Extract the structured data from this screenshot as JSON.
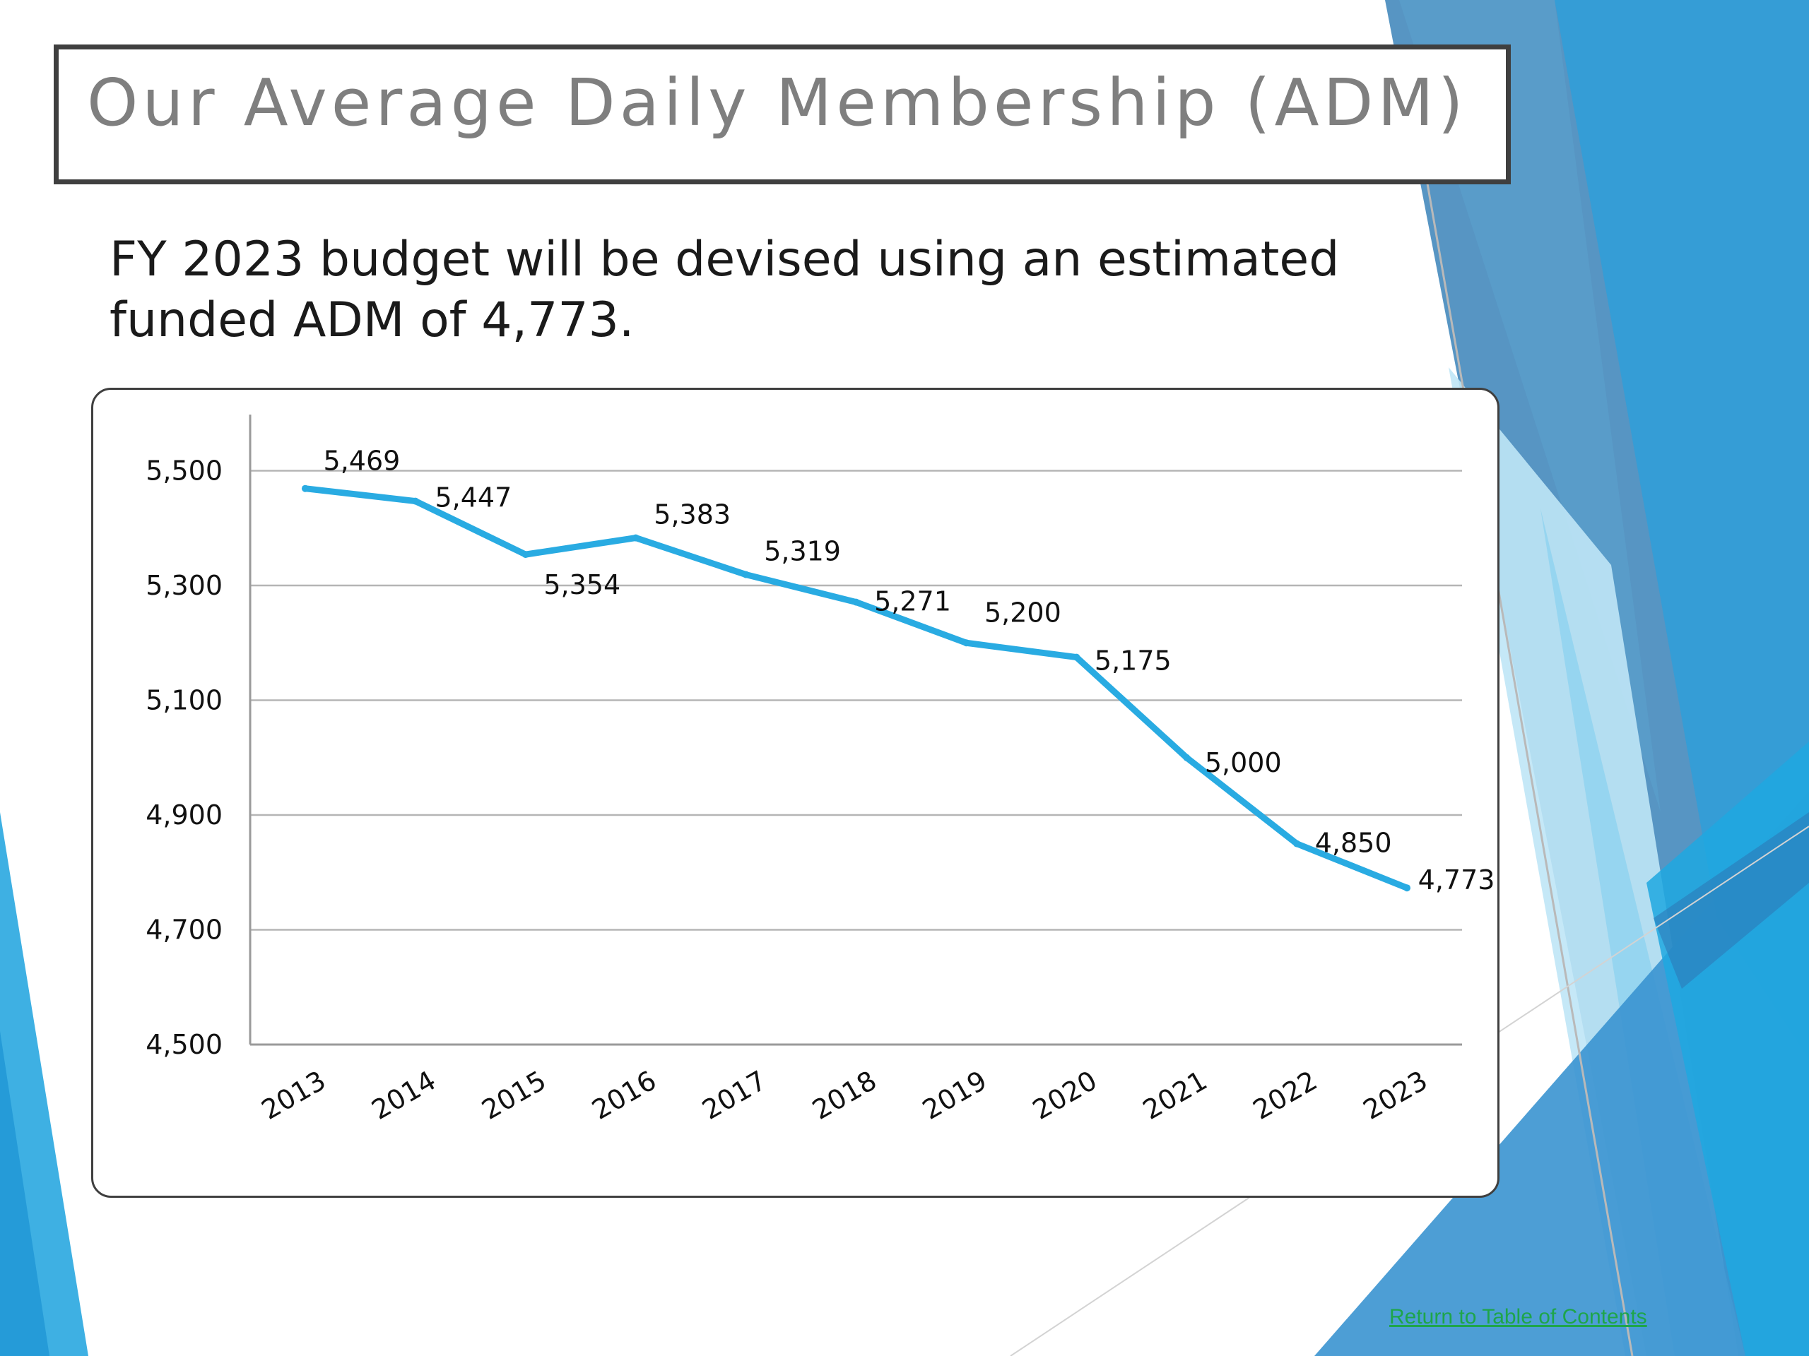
{
  "slide": {
    "title": "Our Average Daily Membership (ADM)",
    "subtitle_line1": "FY 2023 budget will be devised using an estimated",
    "subtitle_line2": "funded ADM of 4,773.",
    "footer_link": "Return to Table of Contents",
    "accent_color": "#29abe2",
    "link_color": "#1ea54a"
  },
  "chart_data": {
    "type": "line",
    "categories": [
      "2013",
      "2014",
      "2015",
      "2016",
      "2017",
      "2018",
      "2019",
      "2020",
      "2021",
      "2022",
      "2023"
    ],
    "series": [
      {
        "values": [
          5469,
          5447,
          5354,
          5383,
          5319,
          5271,
          5200,
          5175,
          5000,
          4850,
          4773
        ],
        "color": "#29abe2"
      }
    ],
    "data_labels": [
      "5,469",
      "5,447",
      "5,354",
      "5,383",
      "5,319",
      "5,271",
      "5,200",
      "5,175",
      "5,000",
      "4,850",
      "4,773"
    ],
    "yticks": [
      "4,500",
      "4,700",
      "4,900",
      "5,100",
      "5,300",
      "5,500"
    ],
    "ylim": [
      4500,
      5600
    ],
    "grid": true,
    "legend": "none",
    "title": "",
    "xlabel": "",
    "ylabel": ""
  }
}
